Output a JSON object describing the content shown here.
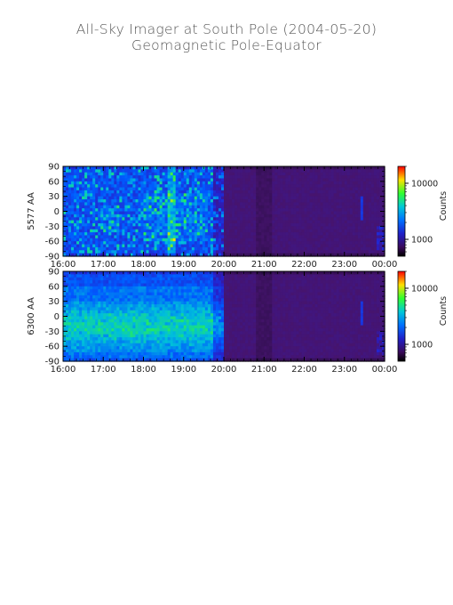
{
  "header": {
    "title": "All-Sky Imager at South Pole (2004-05-20)",
    "subtitle": "Geomagnetic Pole-Equator"
  },
  "chart_data": [
    {
      "type": "heatmap",
      "ylabel": "5577 AA",
      "x_ticks": [
        "16:00",
        "17:00",
        "18:00",
        "19:00",
        "20:00",
        "21:00",
        "22:00",
        "23:00",
        "00:00"
      ],
      "y_ticks": [
        90,
        60,
        30,
        0,
        -30,
        -60,
        -90
      ],
      "ylim": [
        -90,
        90
      ],
      "xlim": [
        "16:00",
        "00:00"
      ],
      "colorbar": {
        "label": "Counts",
        "scale": "log",
        "ticks": [
          1000,
          10000
        ],
        "tick_labels": [
          "1000",
          "10000"
        ],
        "range": [
          500,
          20000
        ]
      }
    },
    {
      "type": "heatmap",
      "ylabel": "6300 AA",
      "x_ticks": [
        "16:00",
        "17:00",
        "18:00",
        "19:00",
        "20:00",
        "21:00",
        "22:00",
        "23:00",
        "00:00"
      ],
      "y_ticks": [
        90,
        60,
        30,
        0,
        -30,
        -60,
        -90
      ],
      "ylim": [
        -90,
        90
      ],
      "xlim": [
        "16:00",
        "00:00"
      ],
      "colorbar": {
        "label": "Counts",
        "scale": "log",
        "ticks": [
          1000,
          10000
        ],
        "tick_labels": [
          "1000",
          "10000"
        ],
        "range": [
          500,
          20000
        ]
      }
    }
  ]
}
